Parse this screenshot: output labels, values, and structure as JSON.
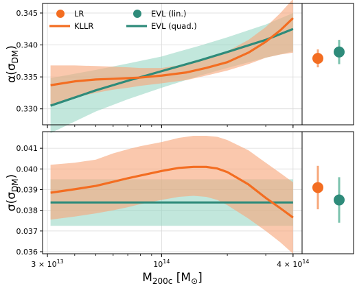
{
  "colors": {
    "orange": "#f36d21",
    "orange_band": "#f7a77a",
    "teal": "#2e8b7a",
    "teal_band": "#8fd3bf"
  },
  "chart_data": [
    {
      "type": "line",
      "panel": "top",
      "ylabel": "α(σ_DM)",
      "ylabel_main": "α(σ",
      "ylabel_sub": "DM",
      "ylabel_end": ")",
      "xscale": "log",
      "xlim": [
        28500000000000.0,
        440000000000000.0
      ],
      "ylim": [
        0.3275,
        0.3465
      ],
      "yticks": [
        0.33,
        0.335,
        0.34,
        0.345
      ],
      "ytick_labels": [
        "0.330",
        "0.335",
        "0.340",
        "0.345"
      ],
      "grid": true,
      "legend": {
        "placement": "top-left",
        "entries": [
          {
            "label": "LR",
            "marker": "circle",
            "color": "orange"
          },
          {
            "label": "EVL (lin.)",
            "marker": "circle",
            "color": "teal"
          },
          {
            "label": "KLLR",
            "marker": "line",
            "color": "orange"
          },
          {
            "label": "EVL (quad.)",
            "marker": "line",
            "color": "teal"
          }
        ]
      },
      "series": [
        {
          "name": "KLLR",
          "color": "orange",
          "x": [
            31000000000000.0,
            40000000000000.0,
            50000000000000.0,
            60000000000000.0,
            70000000000000.0,
            80000000000000.0,
            100000000000000.0,
            130000000000000.0,
            160000000000000.0,
            200000000000000.0,
            250000000000000.0,
            300000000000000.0,
            350000000000000.0,
            400000000000000.0
          ],
          "y": [
            0.3337,
            0.3343,
            0.3346,
            0.3347,
            0.3348,
            0.3349,
            0.3352,
            0.3357,
            0.3364,
            0.3373,
            0.3388,
            0.3405,
            0.3423,
            0.3442
          ],
          "band_low": [
            0.3305,
            0.3318,
            0.3325,
            0.333,
            0.3333,
            0.3336,
            0.334,
            0.3345,
            0.3352,
            0.336,
            0.337,
            0.338,
            0.3385,
            0.3388
          ],
          "band_high": [
            0.3368,
            0.3368,
            0.3367,
            0.3366,
            0.3365,
            0.3364,
            0.3364,
            0.337,
            0.3378,
            0.339,
            0.3408,
            0.3428,
            0.345,
            0.3472
          ]
        },
        {
          "name": "EVL (quad.)",
          "color": "teal",
          "x": [
            31000000000000.0,
            50000000000000.0,
            70000000000000.0,
            100000000000000.0,
            150000000000000.0,
            200000000000000.0,
            300000000000000.0,
            400000000000000.0
          ],
          "y": [
            0.3305,
            0.3329,
            0.3344,
            0.3359,
            0.3376,
            0.3389,
            0.3408,
            0.3425
          ],
          "band_low": [
            0.3262,
            0.3296,
            0.3315,
            0.3333,
            0.3352,
            0.3364,
            0.338,
            0.339
          ],
          "band_high": [
            0.3348,
            0.3361,
            0.3371,
            0.3382,
            0.3399,
            0.3412,
            0.3432,
            0.345
          ]
        }
      ],
      "side_points": [
        {
          "name": "LR",
          "color": "orange",
          "y": 0.3379,
          "err": 0.0014
        },
        {
          "name": "EVL (lin.)",
          "color": "teal",
          "y": 0.3389,
          "err": 0.0019
        }
      ]
    },
    {
      "type": "line",
      "panel": "bottom",
      "ylabel": "σ(σ_DM)",
      "ylabel_main": "σ(σ",
      "ylabel_sub": "DM",
      "ylabel_end": ")",
      "xscale": "log",
      "xlim": [
        28500000000000.0,
        440000000000000.0
      ],
      "ylim": [
        0.0359,
        0.0418
      ],
      "yticks": [
        0.036,
        0.037,
        0.038,
        0.039,
        0.04,
        0.041
      ],
      "ytick_labels": [
        "0.036",
        "0.037",
        "0.038",
        "0.039",
        "0.040",
        "0.041"
      ],
      "xlabel_main": "M",
      "xlabel_sub": "200c",
      "xlabel_unit": " [M",
      "xlabel_unit_sub": "⊙",
      "xlabel_end": "]",
      "xticks": [
        30000000000000.0,
        100000000000000.0,
        400000000000000.0
      ],
      "xtick_labels": [
        {
          "base": "3 × 10",
          "exp": "13"
        },
        {
          "base": "10",
          "exp": "14"
        },
        {
          "base": "4 × 10",
          "exp": "14"
        }
      ],
      "grid": true,
      "series": [
        {
          "name": "KLLR",
          "color": "orange",
          "x": [
            31000000000000.0,
            40000000000000.0,
            50000000000000.0,
            60000000000000.0,
            70000000000000.0,
            80000000000000.0,
            100000000000000.0,
            120000000000000.0,
            140000000000000.0,
            160000000000000.0,
            180000000000000.0,
            200000000000000.0,
            250000000000000.0,
            300000000000000.0,
            350000000000000.0,
            400000000000000.0
          ],
          "y": [
            0.03885,
            0.03902,
            0.03918,
            0.03938,
            0.03955,
            0.03968,
            0.0399,
            0.04005,
            0.0401,
            0.0401,
            0.04002,
            0.03985,
            0.03925,
            0.0386,
            0.0381,
            0.03765
          ],
          "band_low": [
            0.03755,
            0.0377,
            0.03785,
            0.038,
            0.03815,
            0.0383,
            0.0385,
            0.03865,
            0.0387,
            0.03865,
            0.0385,
            0.03825,
            0.0376,
            0.037,
            0.03645,
            0.0359
          ],
          "band_high": [
            0.0402,
            0.0403,
            0.04045,
            0.04075,
            0.04095,
            0.0411,
            0.0413,
            0.0415,
            0.0416,
            0.0416,
            0.04155,
            0.0414,
            0.0409,
            0.0403,
            0.0398,
            0.03935
          ]
        },
        {
          "name": "EVL (quad.)",
          "color": "teal",
          "x": [
            31000000000000.0,
            400000000000000.0
          ],
          "y": [
            0.03838,
            0.03838
          ],
          "band_low": [
            0.03725,
            0.03725
          ],
          "band_high": [
            0.0395,
            0.0395
          ]
        }
      ],
      "side_points": [
        {
          "name": "LR",
          "color": "orange",
          "y": 0.0391,
          "err": 0.00105
        },
        {
          "name": "EVL (lin.)",
          "color": "teal",
          "y": 0.0385,
          "err": 0.0011
        }
      ]
    }
  ]
}
